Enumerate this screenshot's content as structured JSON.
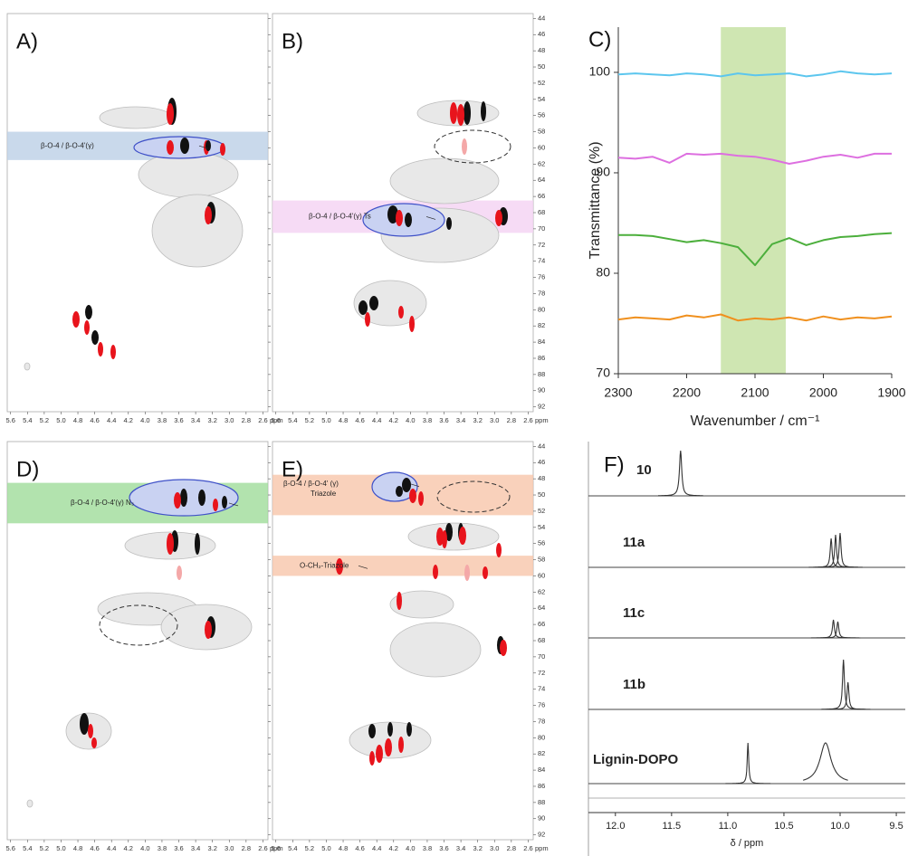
{
  "chart_data": [
    {
      "type": "hsqc",
      "title": "A)",
      "xlim": [
        5.64,
        2.54
      ],
      "ylim": [
        43.4,
        92.6
      ],
      "xticks": [
        5.6,
        5.4,
        5.2,
        {
          "value": 5,
          "label": "5.0"
        },
        4.8,
        4.6,
        4.4,
        4.2,
        {
          "value": 4,
          "label": "4.0"
        },
        3.8,
        3.6,
        3.4,
        3.2,
        {
          "value": 3,
          "label": "3.0"
        },
        2.8,
        2.6
      ],
      "yticks": [
        44,
        46,
        48,
        50,
        52,
        54,
        56,
        58,
        60,
        62,
        64,
        66,
        68,
        70,
        72,
        74,
        76,
        78,
        80,
        82,
        84,
        86,
        88,
        90,
        92
      ],
      "x_unit": "ppm",
      "bands": [
        {
          "range": [
            58,
            61.5
          ],
          "color": "#bcd0e6",
          "label": "β-O-4 / β-O-4'(γ)"
        }
      ]
    },
    {
      "type": "hsqc",
      "title": "B)",
      "xlim": [
        5.64,
        2.54
      ],
      "ylim": [
        43.4,
        92.6
      ],
      "xticks": [
        5.6,
        5.4,
        5.2,
        {
          "value": 5,
          "label": "5.0"
        },
        4.8,
        4.6,
        4.4,
        4.2,
        {
          "value": 4,
          "label": "4.0"
        },
        3.8,
        3.6,
        3.4,
        3.2,
        {
          "value": 3,
          "label": "3.0"
        },
        2.8,
        2.6
      ],
      "yticks": [
        44,
        46,
        48,
        50,
        52,
        54,
        56,
        58,
        60,
        62,
        64,
        66,
        68,
        70,
        72,
        74,
        76,
        78,
        80,
        82,
        84,
        86,
        88,
        90,
        92
      ],
      "x_unit": "ppm",
      "bands": [
        {
          "range": [
            66.5,
            70.5
          ],
          "color": "#f4d2f2",
          "label": "β-O-4 / β-O-4'(γ) Ts"
        }
      ]
    },
    {
      "type": "line",
      "title": "C)",
      "xlabel": "Wavenumber / cm⁻¹",
      "ylabel": "Transmittance (%)",
      "x": [
        2300,
        2275,
        2250,
        2225,
        2200,
        2175,
        2150,
        2125,
        2100,
        2075,
        2050,
        2025,
        2000,
        1975,
        1950,
        1925,
        1900
      ],
      "xlim": [
        2300,
        1900
      ],
      "ylim": [
        70,
        104.5
      ],
      "xticks": [
        2300,
        2200,
        2100,
        2000,
        1900
      ],
      "yticks": [
        70,
        80,
        90,
        100
      ],
      "highlight_range": [
        2150,
        2055
      ],
      "highlight_color": "#cfe6b2",
      "series": [
        {
          "color": "#5cc6ee",
          "values": [
            99.8,
            99.9,
            99.8,
            99.7,
            99.9,
            99.8,
            99.6,
            99.9,
            99.7,
            99.8,
            99.9,
            99.6,
            99.8,
            100.1,
            99.9,
            99.8,
            99.9
          ]
        },
        {
          "color": "#dd6fe0",
          "values": [
            91.5,
            91.4,
            91.6,
            91.0,
            91.9,
            91.8,
            91.9,
            91.7,
            91.6,
            91.3,
            90.9,
            91.2,
            91.6,
            91.8,
            91.5,
            91.9,
            91.9
          ]
        },
        {
          "color": "#4caf3c",
          "values": [
            83.8,
            83.8,
            83.7,
            83.4,
            83.1,
            83.3,
            83.0,
            82.6,
            80.8,
            82.9,
            83.5,
            82.8,
            83.3,
            83.6,
            83.7,
            83.9,
            84.0
          ]
        },
        {
          "color": "#f0901e",
          "values": [
            75.4,
            75.6,
            75.5,
            75.4,
            75.8,
            75.6,
            75.9,
            75.3,
            75.5,
            75.4,
            75.6,
            75.3,
            75.7,
            75.4,
            75.6,
            75.5,
            75.7
          ]
        }
      ]
    },
    {
      "type": "hsqc",
      "title": "D)",
      "xlim": [
        5.64,
        2.54
      ],
      "ylim": [
        43.4,
        92.6
      ],
      "xticks": [
        5.6,
        5.4,
        5.2,
        {
          "value": 5,
          "label": "5.0"
        },
        4.8,
        4.6,
        4.4,
        4.2,
        {
          "value": 4,
          "label": "4.0"
        },
        3.8,
        3.6,
        3.4,
        3.2,
        {
          "value": 3,
          "label": "3.0"
        },
        2.8,
        2.6
      ],
      "yticks": [
        44,
        46,
        48,
        50,
        52,
        54,
        56,
        58,
        60,
        62,
        64,
        66,
        68,
        70,
        72,
        74,
        76,
        78,
        80,
        82,
        84,
        86,
        88,
        90,
        92
      ],
      "x_unit": "ppm",
      "bands": [
        {
          "range": [
            48.5,
            53.5
          ],
          "color": "#9fdc9a",
          "label": "β-O-4 / β-O-4'(γ) N₃"
        }
      ]
    },
    {
      "type": "hsqc",
      "title": "E)",
      "xlim": [
        5.64,
        2.54
      ],
      "ylim": [
        43.4,
        92.6
      ],
      "xticks": [
        5.6,
        5.4,
        5.2,
        {
          "value": 5,
          "label": "5.0"
        },
        4.8,
        4.6,
        4.4,
        4.2,
        {
          "value": 4,
          "label": "4.0"
        },
        3.8,
        3.6,
        3.4,
        3.2,
        {
          "value": 3,
          "label": "3.0"
        },
        2.8,
        2.6
      ],
      "yticks": [
        44,
        46,
        48,
        50,
        52,
        54,
        56,
        58,
        60,
        62,
        64,
        66,
        68,
        70,
        72,
        74,
        76,
        78,
        80,
        82,
        84,
        86,
        88,
        90,
        92
      ],
      "x_unit": "ppm",
      "bands": [
        {
          "range": [
            47.5,
            52.5
          ],
          "color": "#f7c6aa",
          "label": "β-O-4 / β-O-4' (γ)",
          "sublabel": "Triazole"
        },
        {
          "range": [
            57.5,
            60
          ],
          "color": "#f7c6aa",
          "label": "O-CH₂-Triazole"
        }
      ]
    },
    {
      "type": "nmr",
      "title": "F)",
      "xlabel": "δ / ppm",
      "xlim": [
        12.24,
        9.42
      ],
      "xticks": [
        {
          "value": 12,
          "label": "12.0"
        },
        11.5,
        {
          "value": 11,
          "label": "11.0"
        },
        10.5,
        {
          "value": 10,
          "label": "10.0"
        },
        9.5
      ],
      "series": [
        {
          "name": "10",
          "peaks": [
            11.42
          ]
        },
        {
          "name": "11a",
          "peaks": [
            10.08,
            10.04,
            10.0
          ]
        },
        {
          "name": "11c",
          "peaks": [
            10.06,
            10.02
          ]
        },
        {
          "name": "11b",
          "peaks": [
            9.97,
            9.93
          ]
        },
        {
          "name": "Lignin-DOPO",
          "peaks": [
            10.82,
            10.13
          ]
        }
      ]
    }
  ]
}
